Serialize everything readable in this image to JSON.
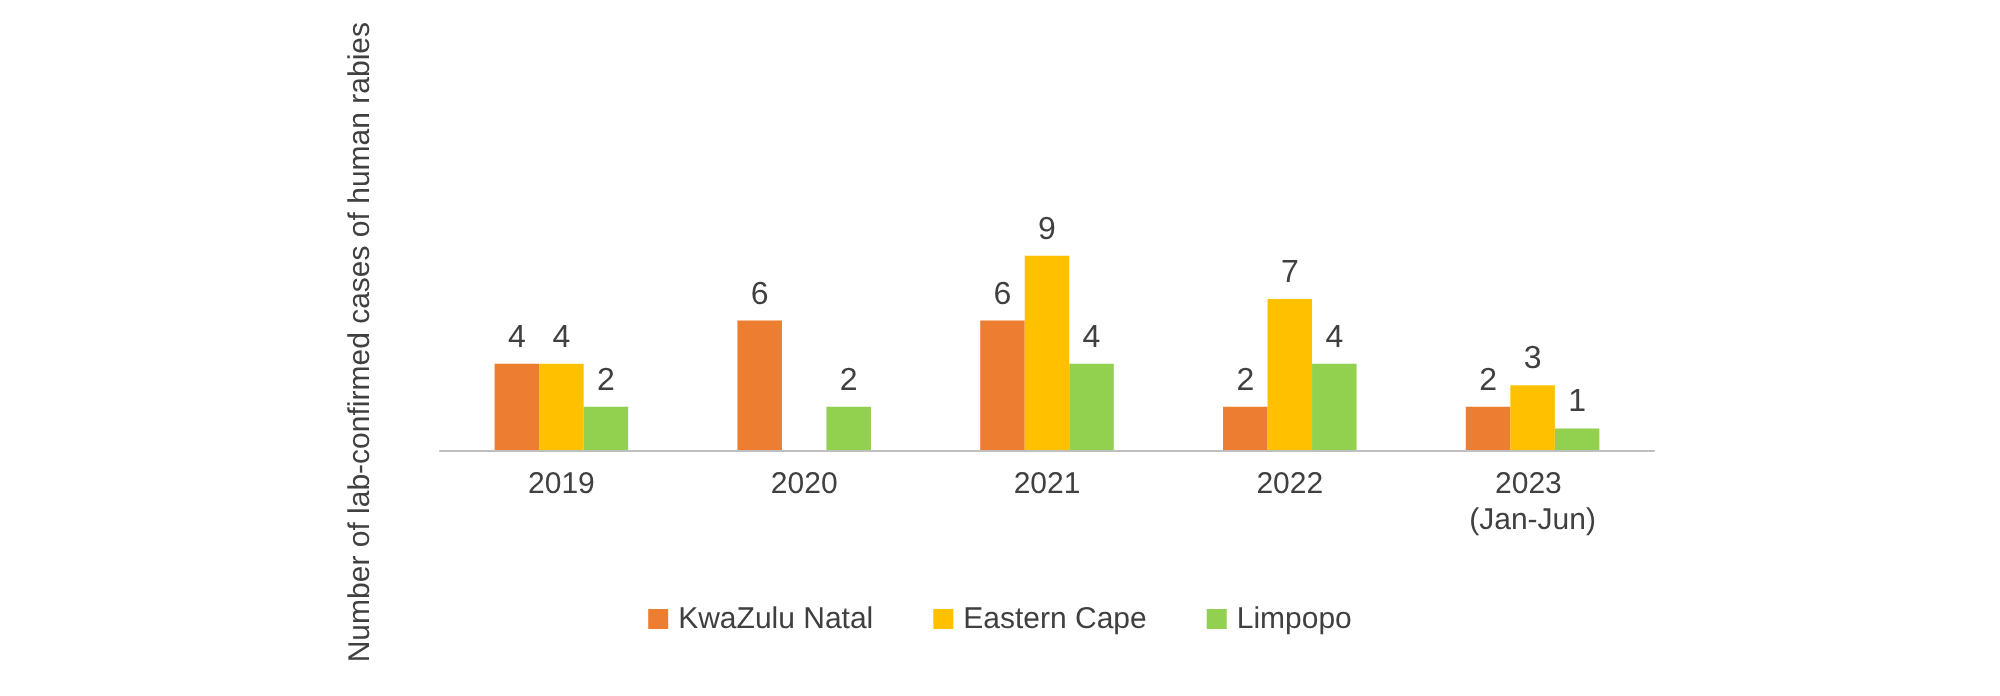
{
  "chart_data": {
    "type": "bar",
    "ylabel": "Number of lab-confirmed cases of human rabies",
    "categories": [
      "2019",
      "2020",
      "2021",
      "2022",
      "2023 (Jan-Jun)"
    ],
    "series": [
      {
        "name": "KwaZulu Natal",
        "color": "#ed7d31",
        "values": [
          4,
          6,
          6,
          2,
          2
        ]
      },
      {
        "name": "Eastern Cape",
        "color": "#ffc000",
        "values": [
          4,
          null,
          9,
          7,
          3
        ]
      },
      {
        "name": "Limpopo",
        "color": "#92d050",
        "values": [
          2,
          2,
          4,
          4,
          1
        ]
      }
    ],
    "data_labels": true,
    "tick_labels": "x",
    "grid": false,
    "legend": "bottom"
  }
}
